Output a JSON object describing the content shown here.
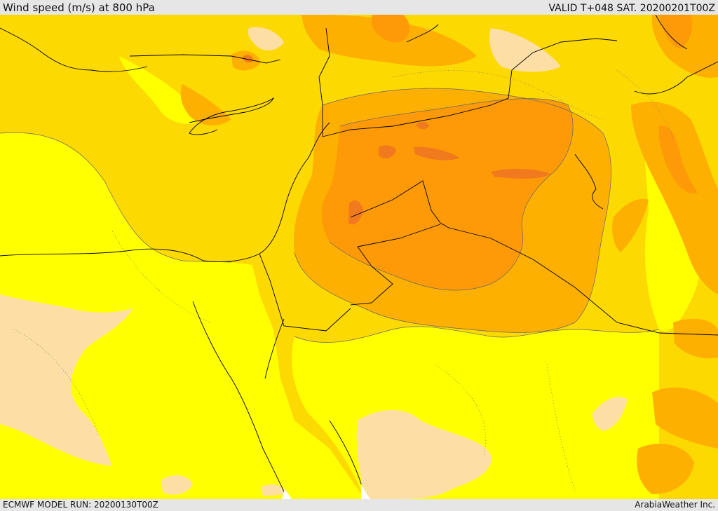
{
  "header": {
    "title": "Wind speed (m/s) at 800 hPa",
    "valid": "VALID T+048 SAT. 20200201T00Z"
  },
  "footer": {
    "model_run": "ECMWF MODEL RUN: 20200130T00Z",
    "credit": "ArabiaWeather Inc."
  },
  "colors": {
    "band_0_5": "#fddfa6",
    "band_5_10": "#ffff00",
    "band_10_15": "#fdd902",
    "band_15_20": "#fdb000",
    "band_20_25": "#fe9a07",
    "band_25_30": "#f07a1d",
    "coastline": "#000000",
    "border": "#000000",
    "contour": "#555555"
  }
}
